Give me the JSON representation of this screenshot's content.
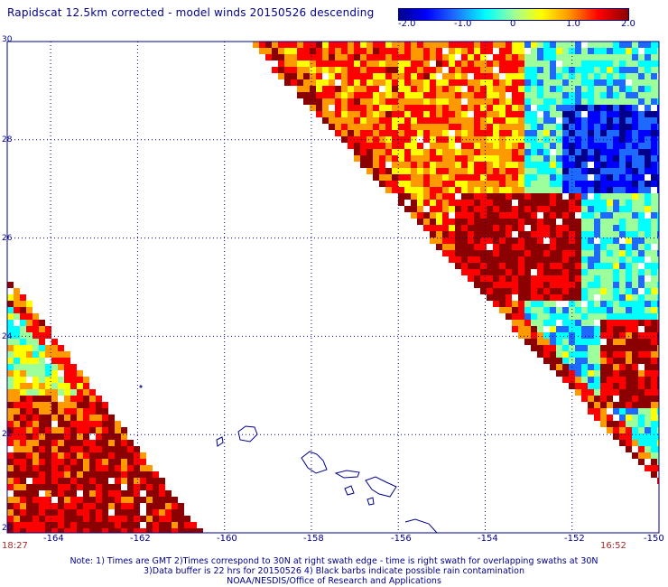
{
  "title": "Rapidscat 12.5km corrected - model winds 20150526 descending",
  "colorbar": {
    "ticks": [
      "-2.0",
      "-1.0",
      "0",
      "1.0",
      "2.0"
    ],
    "colors": [
      "#00008b",
      "#0000ff",
      "#1e6aff",
      "#00ffff",
      "#9cff9c",
      "#ffff00",
      "#ff9900",
      "#ff0000",
      "#8b0000"
    ]
  },
  "map": {
    "lat_labels": [
      "30",
      "28",
      "26",
      "24",
      "22",
      "20"
    ],
    "lon_labels": [
      "-164",
      "-162",
      "-160",
      "-158",
      "-156",
      "-154",
      "-152",
      "-150"
    ],
    "lat_range": [
      20,
      30
    ],
    "lon_range": [
      -165,
      -150
    ],
    "grid_color": "#00008b",
    "land_color": "#00008b"
  },
  "times": {
    "left": "18:27",
    "right": "16:52"
  },
  "notes": [
    "Note: 1) Times are GMT 2)Times correspond to 30N at right swath edge - time is right swath for overlapping swaths at 30N",
    "3)Data buffer is 22 hrs for 20150526 4) Black barbs indicate possible rain contamination",
    "NOAA/NESDIS/Office of Research and Applications"
  ]
}
